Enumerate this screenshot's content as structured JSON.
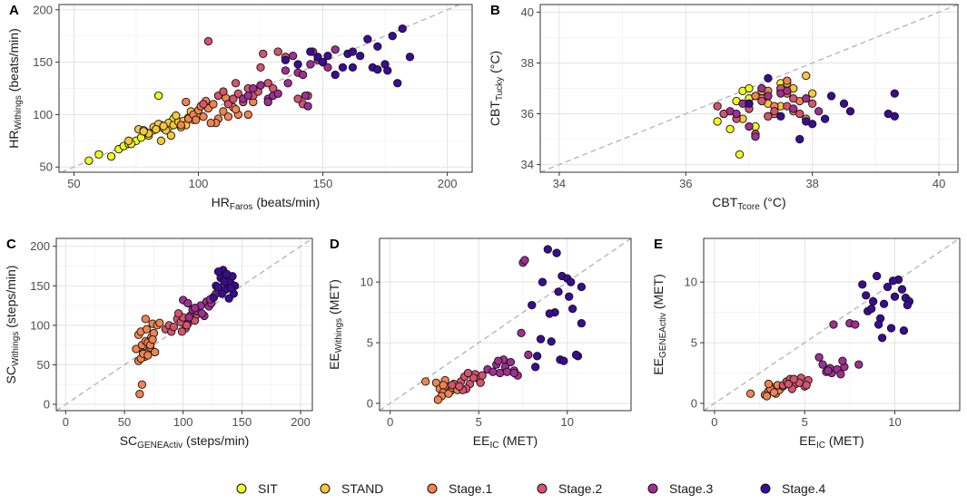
{
  "colors": {
    "SIT": "#f0f921",
    "STAND": "#f7c73a",
    "Stage.1": "#f1834f",
    "Stage.2": "#d5546e",
    "Stage.3": "#a02f94",
    "Stage.4": "#3a0c96"
  },
  "legend": [
    "SIT",
    "STAND",
    "Stage.1",
    "Stage.2",
    "Stage.3",
    "Stage.4"
  ],
  "chart_data": [
    {
      "panel": "A",
      "type": "scatter",
      "xlabel": {
        "main": "HR",
        "sub": "Faros",
        "unit": " (beats/min)"
      },
      "ylabel": {
        "main": "HR",
        "sub": "Withings",
        "unit": " (beats/min)"
      },
      "xlim": [
        44,
        210
      ],
      "ylim": [
        45,
        205
      ],
      "xticks": [
        50,
        100,
        150,
        200
      ],
      "yticks": [
        50,
        100,
        150,
        200
      ],
      "series": [
        {
          "name": "SIT",
          "x": [
            56,
            60,
            65,
            68,
            70,
            72,
            75,
            77,
            80,
            82,
            85,
            88,
            90,
            84,
            79,
            73
          ],
          "y": [
            56,
            62,
            60,
            67,
            70,
            72,
            75,
            78,
            80,
            85,
            90,
            88,
            96,
            118,
            83,
            72
          ]
        },
        {
          "name": "STAND",
          "x": [
            72,
            76,
            78,
            80,
            82,
            84,
            86,
            88,
            90,
            92,
            94,
            95,
            96,
            98,
            100,
            85,
            87,
            91,
            93,
            97,
            78,
            89,
            83,
            86
          ],
          "y": [
            75,
            86,
            85,
            82,
            88,
            91,
            87,
            92,
            90,
            93,
            94,
            90,
            97,
            95,
            100,
            75,
            85,
            99,
            88,
            103,
            84,
            80,
            86,
            89
          ]
        },
        {
          "name": "Stage.1",
          "x": [
            93,
            96,
            98,
            100,
            102,
            104,
            106,
            108,
            110,
            112,
            114,
            116,
            95,
            99,
            101,
            103,
            107,
            111,
            115,
            118,
            120,
            122,
            105
          ],
          "y": [
            90,
            96,
            100,
            104,
            98,
            106,
            110,
            96,
            103,
            98,
            107,
            100,
            112,
            95,
            108,
            113,
            92,
            116,
            105,
            115,
            100,
            112,
            92
          ]
        },
        {
          "name": "Stage.2",
          "x": [
            104,
            108,
            110,
            112,
            114,
            116,
            118,
            120,
            122,
            124,
            126,
            128,
            130,
            132,
            140,
            142,
            144,
            115,
            125,
            135,
            102
          ],
          "y": [
            170,
            118,
            122,
            110,
            115,
            120,
            112,
            125,
            118,
            122,
            158,
            130,
            125,
            160,
            115,
            110,
            118,
            130,
            145,
            155,
            110
          ]
        },
        {
          "name": "Stage.3",
          "x": [
            118,
            120,
            122,
            125,
            128,
            130,
            132,
            135,
            138,
            140,
            142,
            145,
            146,
            148,
            150,
            152,
            155,
            144,
            128,
            136,
            143
          ],
          "y": [
            115,
            118,
            125,
            128,
            115,
            118,
            120,
            142,
            156,
            140,
            138,
            148,
            160,
            152,
            150,
            145,
            162,
            108,
            112,
            130,
            118
          ]
        },
        {
          "name": "Stage.4",
          "x": [
            135,
            140,
            145,
            148,
            150,
            152,
            155,
            158,
            160,
            162,
            165,
            168,
            170,
            172,
            175,
            178,
            180,
            182,
            185,
            176,
            172,
            162
          ],
          "y": [
            152,
            148,
            160,
            155,
            150,
            156,
            138,
            145,
            158,
            160,
            156,
            172,
            145,
            165,
            148,
            175,
            130,
            182,
            155,
            142,
            143,
            145
          ]
        }
      ]
    },
    {
      "panel": "B",
      "type": "scatter",
      "xlabel": {
        "main": "CBT",
        "sub": "Tcore",
        "unit": " (°C)"
      },
      "ylabel": {
        "main": "CBT",
        "sub": "Tucky",
        "unit": " (°C)"
      },
      "xlim": [
        33.7,
        40.3
      ],
      "ylim": [
        33.7,
        40.3
      ],
      "xticks": [
        34,
        36,
        38,
        40
      ],
      "yticks": [
        34,
        36,
        38,
        40
      ],
      "series": [
        {
          "name": "SIT",
          "x": [
            36.5,
            36.7,
            36.8,
            37.0,
            36.9,
            37.2,
            37.5,
            36.6,
            37.1,
            36.85,
            37.3,
            37.0
          ],
          "y": [
            35.7,
            35.4,
            36.5,
            36.6,
            36.9,
            37.0,
            37.2,
            36.0,
            35.5,
            34.4,
            36.7,
            37.0
          ]
        },
        {
          "name": "STAND",
          "x": [
            36.9,
            37.0,
            37.1,
            37.2,
            37.3,
            37.4,
            37.5,
            37.6,
            37.7,
            37.2,
            37.5,
            37.9,
            38.0,
            37.3,
            37.1
          ],
          "y": [
            35.8,
            36.2,
            36.7,
            36.9,
            36.4,
            36.0,
            36.9,
            37.2,
            37.0,
            36.6,
            36.3,
            37.5,
            36.8,
            35.9,
            35.2
          ]
        },
        {
          "name": "Stage.1",
          "x": [
            37.0,
            37.2,
            37.4,
            37.6,
            37.8,
            37.5,
            37.3,
            37.1,
            37.7,
            37.9,
            37.6,
            37.4
          ],
          "y": [
            36.4,
            36.6,
            36.3,
            36.8,
            36.5,
            37.0,
            36.9,
            36.7,
            36.1,
            35.8,
            37.3,
            36.0
          ]
        },
        {
          "name": "Stage.2",
          "x": [
            36.5,
            36.6,
            36.8,
            37.0,
            37.2,
            37.4,
            37.6,
            37.8,
            37.1,
            37.3,
            37.5,
            37.7,
            38.0
          ],
          "y": [
            36.3,
            36.0,
            35.8,
            36.2,
            36.5,
            36.1,
            36.3,
            36.0,
            35.2,
            35.9,
            37.0,
            36.6,
            36.4
          ]
        },
        {
          "name": "Stage.3",
          "x": [
            36.7,
            36.9,
            37.1,
            37.3,
            37.5,
            37.7,
            37.9,
            36.8,
            37.2,
            37.6,
            38.1,
            37.0
          ],
          "y": [
            36.1,
            36.4,
            35.1,
            36.7,
            36.8,
            36.2,
            36.6,
            36.0,
            37.0,
            36.9,
            36.1,
            35.5
          ]
        },
        {
          "name": "Stage.4",
          "x": [
            37.0,
            37.5,
            37.8,
            38.0,
            38.2,
            38.5,
            38.6,
            39.2,
            39.3,
            37.9,
            38.3,
            37.3,
            39.3
          ],
          "y": [
            36.4,
            35.9,
            35.0,
            35.6,
            35.8,
            36.4,
            36.1,
            36.0,
            35.9,
            35.7,
            36.7,
            37.4,
            36.8
          ]
        }
      ]
    },
    {
      "panel": "C",
      "type": "scatter",
      "xlabel": {
        "main": "SC",
        "sub": "GENEActiv",
        "unit": " (steps/min)"
      },
      "ylabel": {
        "main": "SC",
        "sub": "Withings",
        "unit": " (steps/min)"
      },
      "xlim": [
        -8,
        210
      ],
      "ylim": [
        -8,
        210
      ],
      "xticks": [
        0,
        50,
        100,
        150,
        200
      ],
      "yticks": [
        0,
        50,
        100,
        150,
        200
      ],
      "series": [
        {
          "name": "Stage.1",
          "x": [
            60,
            62,
            64,
            65,
            66,
            67,
            68,
            69,
            70,
            71,
            72,
            73,
            74,
            75,
            76,
            78,
            80,
            62,
            64,
            66,
            68,
            70,
            72,
            74,
            63,
            65
          ],
          "y": [
            70,
            88,
            92,
            75,
            65,
            60,
            80,
            95,
            78,
            68,
            72,
            85,
            102,
            90,
            66,
            100,
            103,
            55,
            58,
            64,
            108,
            62,
            75,
            82,
            13,
            25
          ]
        },
        {
          "name": "Stage.2",
          "x": [
            85,
            88,
            90,
            92,
            95,
            98,
            100,
            102,
            104,
            106,
            108,
            110,
            112,
            96,
            99,
            103
          ],
          "y": [
            95,
            100,
            92,
            98,
            108,
            104,
            110,
            96,
            102,
            112,
            108,
            106,
            114,
            115,
            92,
            100
          ]
        },
        {
          "name": "Stage.3",
          "x": [
            100,
            104,
            108,
            112,
            115,
            118,
            120,
            122,
            124,
            126,
            128,
            130,
            105,
            110,
            116,
            123
          ],
          "y": [
            132,
            128,
            120,
            118,
            125,
            112,
            130,
            124,
            128,
            136,
            140,
            145,
            110,
            122,
            115,
            133
          ]
        },
        {
          "name": "Stage.4",
          "x": [
            126,
            128,
            130,
            132,
            134,
            135,
            136,
            138,
            140,
            142,
            143,
            144,
            130,
            133,
            137,
            141,
            139,
            135
          ],
          "y": [
            135,
            150,
            148,
            160,
            170,
            158,
            145,
            152,
            155,
            162,
            140,
            150,
            168,
            140,
            165,
            147,
            134,
            155
          ]
        }
      ]
    },
    {
      "panel": "D",
      "type": "scatter",
      "xlabel": {
        "main": "EE",
        "sub": "IC",
        "unit": " (MET)"
      },
      "ylabel": {
        "main": "EE",
        "sub": "Withings",
        "unit": " (MET)"
      },
      "xlim": [
        -0.6,
        13.6
      ],
      "ylim": [
        -0.6,
        13.6
      ],
      "xticks": [
        0,
        5,
        10
      ],
      "yticks": [
        0,
        5,
        10
      ],
      "series": [
        {
          "name": "Stage.1",
          "x": [
            2.0,
            2.6,
            2.8,
            3.0,
            3.2,
            3.4,
            3.6,
            2.9,
            3.1,
            3.3,
            3.5,
            2.7,
            3.0,
            3.8
          ],
          "y": [
            1.8,
            1.7,
            1.2,
            0.9,
            1.4,
            1.0,
            1.6,
            0.6,
            1.9,
            0.8,
            1.3,
            0.3,
            1.5,
            1.1
          ]
        },
        {
          "name": "Stage.2",
          "x": [
            3.5,
            4.0,
            4.2,
            4.5,
            4.8,
            5.0,
            5.2,
            4.3,
            4.7,
            4.1,
            5.1,
            3.9,
            4.4
          ],
          "y": [
            1.5,
            1.8,
            2.2,
            1.6,
            2.4,
            2.0,
            2.3,
            1.2,
            2.1,
            1.1,
            1.7,
            1.4,
            2.5
          ]
        },
        {
          "name": "Stage.3",
          "x": [
            5.5,
            6.0,
            6.2,
            6.5,
            6.8,
            7.0,
            7.2,
            6.4,
            6.6,
            7.4,
            7.5,
            7.6,
            7.8,
            7.0,
            6.1,
            5.8
          ],
          "y": [
            2.8,
            3.2,
            2.5,
            3.0,
            3.4,
            2.7,
            2.3,
            3.6,
            2.6,
            5.8,
            11.6,
            11.8,
            4.0,
            2.5,
            3.5,
            2.6
          ]
        },
        {
          "name": "Stage.4",
          "x": [
            8.0,
            8.3,
            8.6,
            8.9,
            9.1,
            9.3,
            9.5,
            9.7,
            10.0,
            10.3,
            10.6,
            10.8,
            8.2,
            9.0,
            9.6,
            10.2,
            10.8,
            8.5,
            9.4,
            9.8,
            10.5,
            10.1
          ],
          "y": [
            8.1,
            3.9,
            10.0,
            12.7,
            5.1,
            7.5,
            9.2,
            10.5,
            10.3,
            7.8,
            3.9,
            9.6,
            3.0,
            7.4,
            3.6,
            10.0,
            6.6,
            5.3,
            12.4,
            3.5,
            4.0,
            8.8
          ]
        }
      ]
    },
    {
      "panel": "E",
      "type": "scatter",
      "xlabel": {
        "main": "EE",
        "sub": "IC",
        "unit": " (MET)"
      },
      "ylabel": {
        "main": "EE",
        "sub": "GENEActiv",
        "unit": " (MET)"
      },
      "xlim": [
        -0.6,
        13.6
      ],
      "ylim": [
        -0.6,
        13.6
      ],
      "xticks": [
        0,
        5,
        10
      ],
      "yticks": [
        0,
        5,
        10
      ],
      "series": [
        {
          "name": "Stage.1",
          "x": [
            2.0,
            2.8,
            3.0,
            3.2,
            3.4,
            3.6,
            2.9,
            3.1,
            3.3,
            3.5,
            3.8,
            3.0
          ],
          "y": [
            0.8,
            0.7,
            1.0,
            1.3,
            0.8,
            1.1,
            0.6,
            1.2,
            0.9,
            1.5,
            1.4,
            1.6
          ]
        },
        {
          "name": "Stage.2",
          "x": [
            3.8,
            4.0,
            4.2,
            4.5,
            4.8,
            5.0,
            5.2,
            4.3,
            4.7,
            4.1,
            5.1,
            4.4
          ],
          "y": [
            1.5,
            1.8,
            2.0,
            1.6,
            2.1,
            1.4,
            1.9,
            1.2,
            1.7,
            1.6,
            1.5,
            2.0
          ]
        },
        {
          "name": "Stage.3",
          "x": [
            5.8,
            6.0,
            6.2,
            6.5,
            6.8,
            7.0,
            7.2,
            6.4,
            6.6,
            7.5,
            7.8,
            6.3,
            8.0,
            7.1
          ],
          "y": [
            3.8,
            3.2,
            2.6,
            2.5,
            2.8,
            2.4,
            3.0,
            2.9,
            6.5,
            6.6,
            6.5,
            2.7,
            3.2,
            3.5
          ]
        },
        {
          "name": "Stage.4",
          "x": [
            8.2,
            8.5,
            8.8,
            9.0,
            9.2,
            9.4,
            9.6,
            9.8,
            10.0,
            10.2,
            10.4,
            10.6,
            10.8,
            8.7,
            9.3,
            9.9,
            10.5,
            9.1,
            8.4,
            10.7
          ],
          "y": [
            9.8,
            7.6,
            8.4,
            10.5,
            7.0,
            8.2,
            9.6,
            6.2,
            8.8,
            10.2,
            9.4,
            8.7,
            8.4,
            7.8,
            5.4,
            10.1,
            6.0,
            6.5,
            8.9,
            8.1
          ]
        }
      ]
    }
  ]
}
